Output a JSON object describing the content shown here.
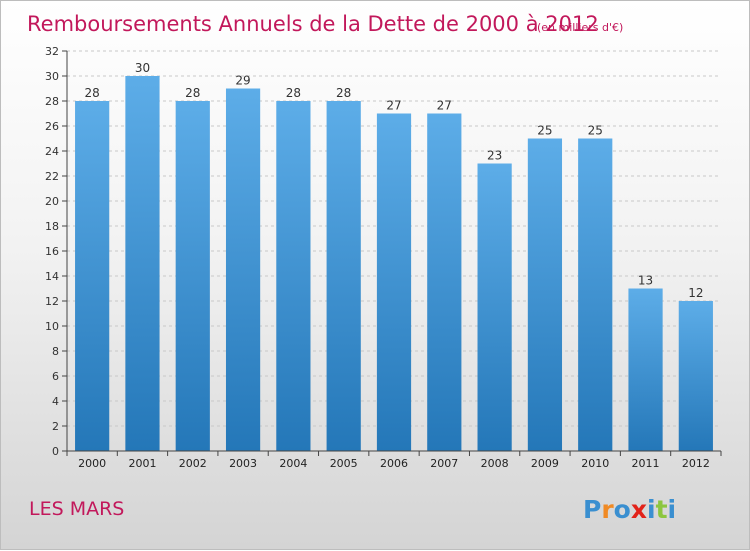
{
  "chart_data": {
    "type": "bar",
    "title": "Remboursements Annuels de la Dette de 2000 à 2012",
    "subtitle": "(en milliers d'€)",
    "categories": [
      "2000",
      "2001",
      "2002",
      "2003",
      "2004",
      "2005",
      "2006",
      "2007",
      "2008",
      "2009",
      "2010",
      "2011",
      "2012"
    ],
    "values": [
      28,
      30,
      28,
      29,
      28,
      28,
      27,
      27,
      23,
      25,
      25,
      13,
      12
    ],
    "ylim": [
      0,
      32
    ],
    "yticks": [
      0,
      2,
      4,
      6,
      8,
      10,
      12,
      14,
      16,
      18,
      20,
      22,
      24,
      26,
      28,
      30,
      32
    ],
    "xlabel": "",
    "ylabel": "",
    "grid": "horizontal dashed",
    "bar_color_top": "#5dade8",
    "bar_color_bottom": "#2477b8"
  },
  "footer": {
    "city": "LES MARS",
    "logo": "Proxiti",
    "logo_colors": [
      "#3a8fd0",
      "#f08a24",
      "#3a8fd0",
      "#e2231a",
      "#3a8fd0",
      "#8cc63f",
      "#3a8fd0"
    ]
  },
  "colors": {
    "title": "#c2185b",
    "axis": "#444444",
    "grid": "#c8c8c8"
  }
}
